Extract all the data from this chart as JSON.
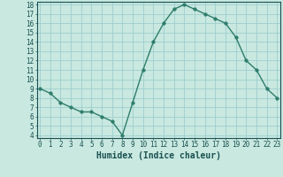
{
  "x": [
    0,
    1,
    2,
    3,
    4,
    5,
    6,
    7,
    8,
    9,
    10,
    11,
    12,
    13,
    14,
    15,
    16,
    17,
    18,
    19,
    20,
    21,
    22,
    23
  ],
  "y": [
    9.0,
    8.5,
    7.5,
    7.0,
    6.5,
    6.5,
    6.0,
    5.5,
    4.0,
    7.5,
    11.0,
    14.0,
    16.0,
    17.5,
    18.0,
    17.5,
    17.0,
    16.5,
    16.0,
    14.5,
    12.0,
    11.0,
    9.0,
    8.0
  ],
  "xlabel": "Humidex (Indice chaleur)",
  "ylim_min": 4,
  "ylim_max": 18,
  "xlim_min": 0,
  "xlim_max": 23,
  "yticks": [
    4,
    5,
    6,
    7,
    8,
    9,
    10,
    11,
    12,
    13,
    14,
    15,
    16,
    17,
    18
  ],
  "xticks": [
    0,
    1,
    2,
    3,
    4,
    5,
    6,
    7,
    8,
    9,
    10,
    11,
    12,
    13,
    14,
    15,
    16,
    17,
    18,
    19,
    20,
    21,
    22,
    23
  ],
  "line_color": "#2e7d6b",
  "marker_color": "#2e7d6b",
  "bg_color": "#c8e8e0",
  "grid_color": "#9ecece",
  "tick_label_color": "#1a5050",
  "xlabel_color": "#1a5050",
  "xlabel_fontsize": 7,
  "tick_fontsize": 5.5,
  "line_width": 1.0,
  "marker_size": 2.5
}
